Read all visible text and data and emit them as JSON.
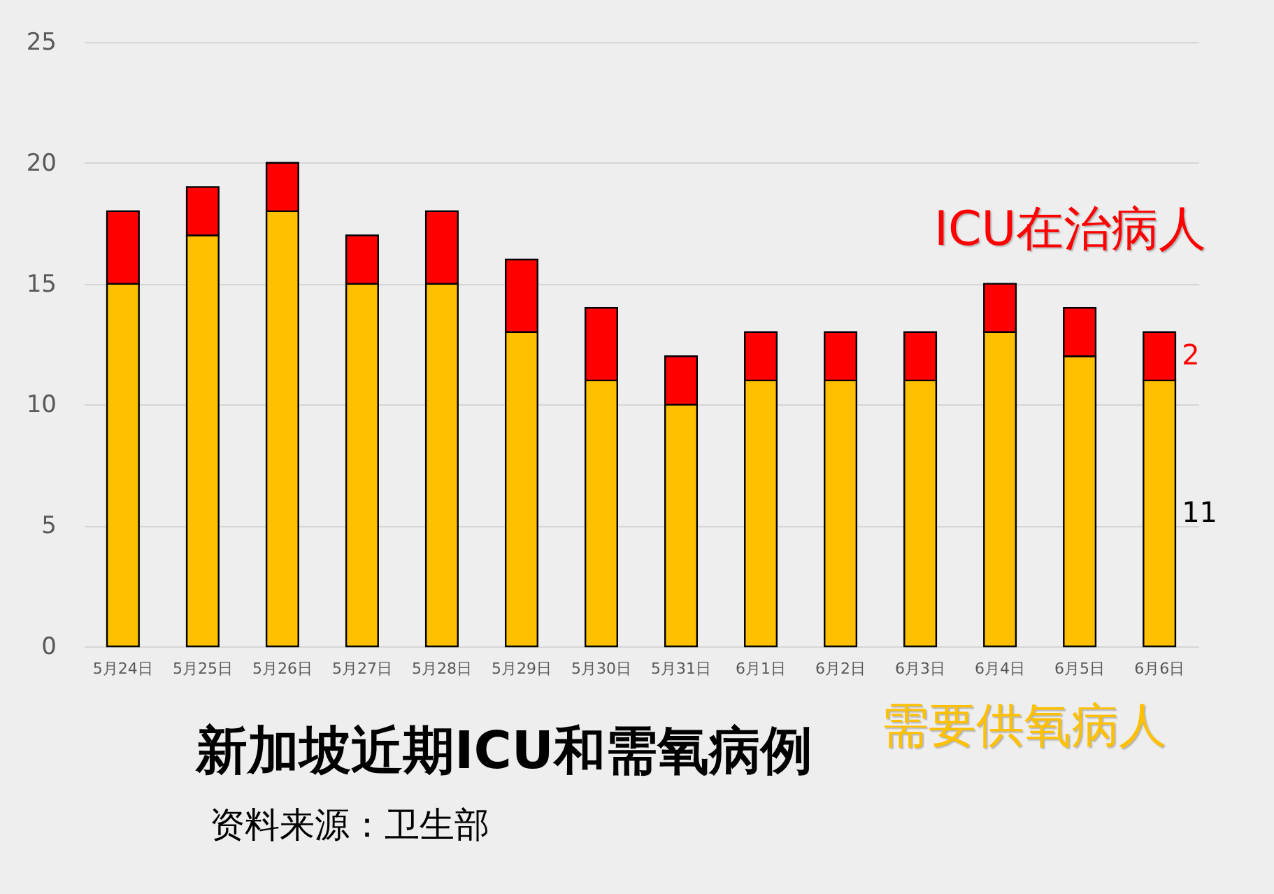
{
  "chart_data": {
    "type": "bar",
    "stacked": true,
    "title": "新加坡近期ICU和需氧病例",
    "annotations": [
      "资料来源：卫生部"
    ],
    "categories": [
      "5月24日",
      "5月25日",
      "5月26日",
      "5月27日",
      "5月28日",
      "5月29日",
      "5月30日",
      "5月31日",
      "6月1日",
      "6月2日",
      "6月3日",
      "6月4日",
      "6月5日",
      "6月6日"
    ],
    "series": [
      {
        "name": "需要供氧病人",
        "color": "#ffc000",
        "values": [
          15,
          17,
          18,
          15,
          15,
          13,
          11,
          10,
          11,
          11,
          11,
          13,
          12,
          11
        ],
        "value_labels": [
          null,
          null,
          null,
          null,
          null,
          null,
          null,
          null,
          null,
          null,
          null,
          null,
          null,
          "11"
        ]
      },
      {
        "name": "ICU在治病人",
        "color": "#ff0000",
        "values": [
          3,
          2,
          2,
          2,
          3,
          3,
          3,
          2,
          2,
          2,
          2,
          2,
          2,
          2
        ],
        "value_labels": [
          null,
          null,
          null,
          null,
          null,
          null,
          null,
          null,
          null,
          null,
          null,
          null,
          null,
          "2"
        ]
      }
    ],
    "ylim": [
      0,
      25
    ],
    "yticks": [
      0,
      5,
      10,
      15,
      20,
      25
    ],
    "grid": "y",
    "legend": false
  }
}
